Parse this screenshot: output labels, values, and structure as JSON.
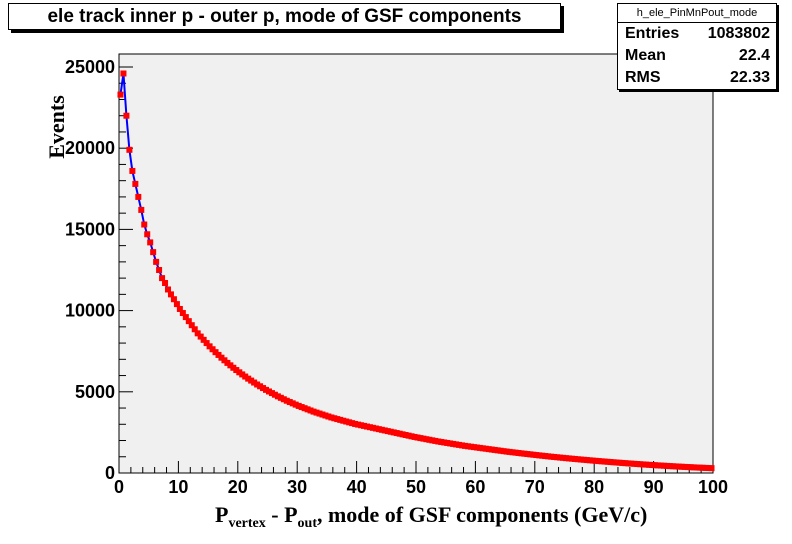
{
  "title": "ele track inner p - outer p, mode of GSF components",
  "stats": {
    "name": "h_ele_PinMnPout_mode",
    "rows": [
      {
        "label": "Entries",
        "value": "1083802"
      },
      {
        "label": "Mean",
        "value": "22.4"
      },
      {
        "label": "RMS",
        "value": "22.33"
      }
    ]
  },
  "colors": {
    "frame_bg": "#f0f0f0",
    "line": "#0000ff",
    "marker": "#ff0000"
  },
  "chart_data": {
    "type": "line",
    "title": "ele track inner p - outer p, mode of GSF components",
    "xlabel": {
      "main": "P",
      "sub1": "vertex",
      "mid": " - P",
      "sub2": "out",
      "rest": ", mode of GSF components (GeV/c)"
    },
    "ylabel": "Events",
    "xlim": [
      0,
      100
    ],
    "ylim": [
      0,
      25800
    ],
    "x_ticks": [
      0,
      10,
      20,
      30,
      40,
      50,
      60,
      70,
      80,
      90,
      100
    ],
    "y_ticks": [
      0,
      5000,
      10000,
      15000,
      20000,
      25000
    ],
    "grid": false,
    "series": [
      {
        "x_start": 0.25,
        "x_step": 0.5,
        "values": [
          23300,
          24600,
          22000,
          19900,
          18600,
          17800,
          17000,
          16200,
          15300,
          14700,
          14200,
          13600,
          13000,
          12500,
          12000,
          11700,
          11300,
          11000,
          10700,
          10400,
          10100,
          9850,
          9600,
          9350,
          9100,
          8850,
          8600,
          8400,
          8200,
          8000,
          7800,
          7620,
          7440,
          7270,
          7100,
          6940,
          6780,
          6630,
          6480,
          6340,
          6200,
          6070,
          5940,
          5810,
          5690,
          5570,
          5450,
          5340,
          5230,
          5120,
          5020,
          4920,
          4820,
          4720,
          4630,
          4540,
          4450,
          4370,
          4290,
          4210,
          4130,
          4060,
          3990,
          3920,
          3850,
          3780,
          3720,
          3660,
          3600,
          3540,
          3480,
          3420,
          3370,
          3320,
          3270,
          3220,
          3170,
          3120,
          3070,
          3020,
          2980,
          2940,
          2900,
          2860,
          2820,
          2780,
          2740,
          2700,
          2660,
          2620,
          2580,
          2540,
          2500,
          2460,
          2420,
          2380,
          2340,
          2300,
          2260,
          2220,
          2185,
          2150,
          2115,
          2080,
          2045,
          2010,
          1975,
          1940,
          1910,
          1880,
          1850,
          1820,
          1790,
          1760,
          1730,
          1700,
          1670,
          1645,
          1620,
          1595,
          1570,
          1545,
          1520,
          1495,
          1470,
          1445,
          1420,
          1395,
          1370,
          1345,
          1320,
          1298,
          1276,
          1254,
          1232,
          1210,
          1189,
          1168,
          1147,
          1126,
          1105,
          1085,
          1065,
          1045,
          1025,
          1005,
          987,
          969,
          951,
          933,
          915,
          898,
          881,
          864,
          847,
          830,
          814,
          798,
          782,
          766,
          750,
          735,
          720,
          705,
          690,
          675,
          661,
          647,
          633,
          619,
          605,
          592,
          579,
          566,
          553,
          540,
          528,
          516,
          504,
          492,
          480,
          469,
          458,
          447,
          436,
          425,
          415,
          405,
          395,
          385,
          375,
          366,
          357,
          348,
          339,
          330,
          322,
          314,
          306,
          298
        ]
      }
    ]
  }
}
